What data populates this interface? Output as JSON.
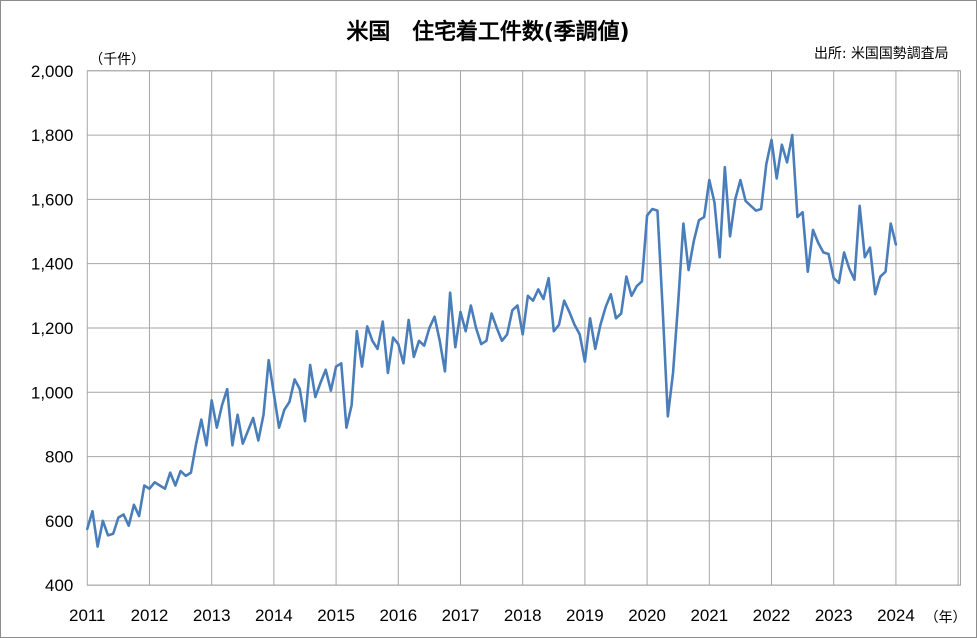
{
  "chart_data": {
    "type": "line",
    "title": "米国　住宅着工件数(季調値)",
    "y_unit_label": "（千件）",
    "x_unit_label": "（年）",
    "source": "出所: 米国国勢調査局",
    "ylim": [
      400,
      2000
    ],
    "y_ticks": [
      "400",
      "600",
      "800",
      "1,000",
      "1,200",
      "1,400",
      "1,600",
      "1,800",
      "2,000"
    ],
    "y_tick_values": [
      400,
      600,
      800,
      1000,
      1200,
      1400,
      1600,
      1800,
      2000
    ],
    "x_ticks": [
      "2011",
      "2012",
      "2013",
      "2014",
      "2015",
      "2016",
      "2017",
      "2018",
      "2019",
      "2020",
      "2021",
      "2022",
      "2023",
      "2024"
    ],
    "grid": true,
    "legend": "none",
    "colors": {
      "line": "#4a7ebb",
      "grid": "#a6a6a6"
    },
    "series": [
      {
        "start": "2011-01",
        "frequency": "monthly",
        "values": [
          575,
          630,
          520,
          600,
          555,
          560,
          610,
          620,
          585,
          650,
          615,
          710,
          700,
          720,
          710,
          700,
          750,
          710,
          755,
          740,
          750,
          840,
          915,
          835,
          975,
          890,
          960,
          1010,
          835,
          930,
          840,
          880,
          920,
          850,
          930,
          1100,
          995,
          890,
          945,
          970,
          1040,
          1010,
          910,
          1085,
          985,
          1030,
          1070,
          1005,
          1080,
          1090,
          890,
          960,
          1190,
          1080,
          1205,
          1160,
          1135,
          1220,
          1060,
          1170,
          1150,
          1090,
          1225,
          1110,
          1160,
          1145,
          1200,
          1235,
          1160,
          1065,
          1310,
          1140,
          1250,
          1190,
          1270,
          1200,
          1150,
          1160,
          1245,
          1200,
          1160,
          1180,
          1255,
          1270,
          1180,
          1300,
          1285,
          1320,
          1290,
          1355,
          1190,
          1210,
          1285,
          1250,
          1210,
          1180,
          1095,
          1230,
          1135,
          1210,
          1265,
          1305,
          1230,
          1245,
          1360,
          1300,
          1330,
          1345,
          1550,
          1570,
          1565,
          1260,
          925,
          1060,
          1280,
          1525,
          1380,
          1470,
          1535,
          1545,
          1660,
          1590,
          1420,
          1700,
          1485,
          1600,
          1660,
          1595,
          1580,
          1565,
          1570,
          1710,
          1785,
          1665,
          1770,
          1715,
          1800,
          1545,
          1560,
          1375,
          1505,
          1465,
          1435,
          1430,
          1355,
          1340,
          1435,
          1385,
          1350,
          1580,
          1420,
          1450,
          1305,
          1360,
          1375,
          1525,
          1460
        ]
      }
    ]
  }
}
